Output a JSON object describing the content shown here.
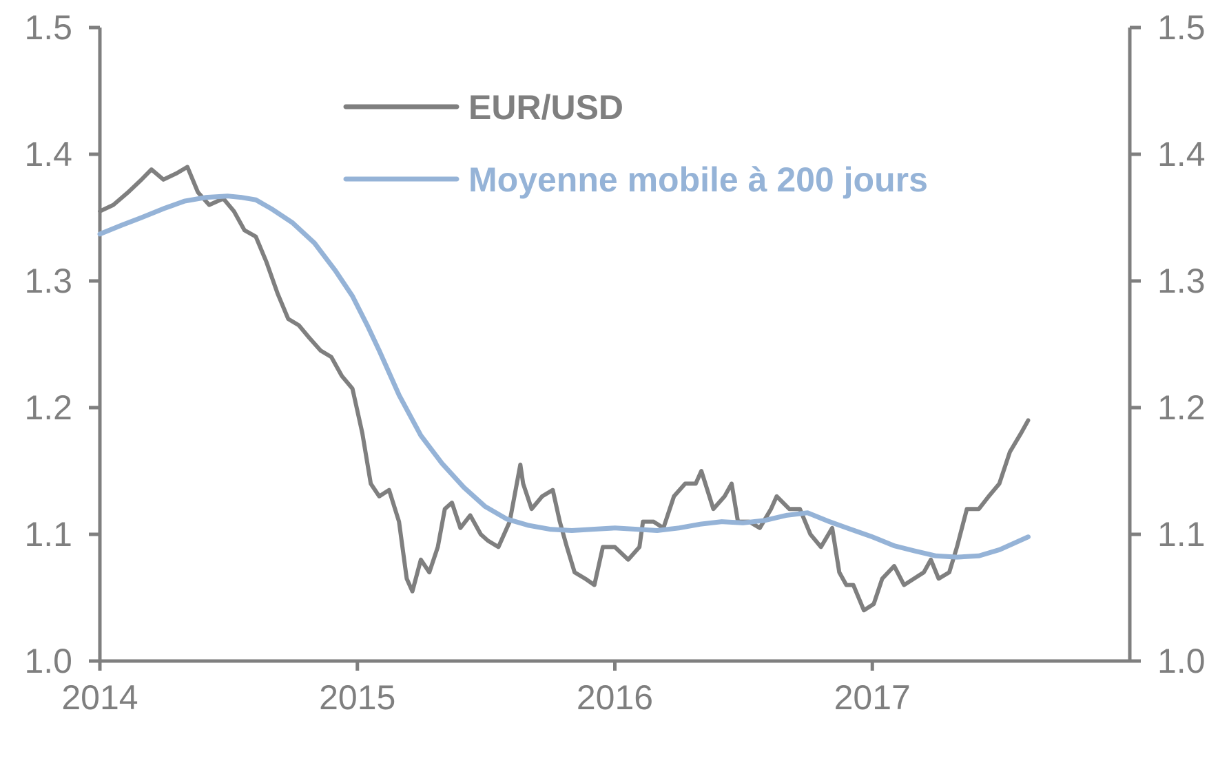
{
  "chart_data": {
    "type": "line",
    "title": "",
    "xlabel": "",
    "ylabel": "",
    "x_ticks": [
      "2014",
      "2015",
      "2016",
      "2017"
    ],
    "xlim": [
      "2014-01-01",
      "2017-12-31"
    ],
    "ylim": [
      1.0,
      1.5
    ],
    "y_ticks": [
      "1.0",
      "1.1",
      "1.2",
      "1.3",
      "1.4",
      "1.5"
    ],
    "secondary_y_ticks": [
      "1.0",
      "1.1",
      "1.2",
      "1.3",
      "1.4",
      "1.5"
    ],
    "grid": false,
    "legend_position": "top-center",
    "series": [
      {
        "name": "EUR/USD",
        "color": "#7f7f7f",
        "x": [
          "2014-01-01",
          "2014-01-20",
          "2014-02-10",
          "2014-03-01",
          "2014-03-15",
          "2014-04-01",
          "2014-04-20",
          "2014-05-05",
          "2014-05-20",
          "2014-06-05",
          "2014-06-25",
          "2014-07-10",
          "2014-07-25",
          "2014-08-10",
          "2014-08-25",
          "2014-09-10",
          "2014-09-25",
          "2014-10-10",
          "2014-10-25",
          "2014-11-10",
          "2014-11-25",
          "2014-12-10",
          "2014-12-25",
          "2015-01-08",
          "2015-01-20",
          "2015-02-01",
          "2015-02-15",
          "2015-03-01",
          "2015-03-12",
          "2015-03-20",
          "2015-04-01",
          "2015-04-13",
          "2015-04-25",
          "2015-05-05",
          "2015-05-15",
          "2015-05-27",
          "2015-06-10",
          "2015-06-25",
          "2015-07-05",
          "2015-07-20",
          "2015-08-05",
          "2015-08-20",
          "2015-08-24",
          "2015-09-05",
          "2015-09-20",
          "2015-10-05",
          "2015-10-15",
          "2015-10-25",
          "2015-11-05",
          "2015-11-20",
          "2015-12-03",
          "2015-12-15",
          "2016-01-01",
          "2016-01-20",
          "2016-02-05",
          "2016-02-10",
          "2016-02-25",
          "2016-03-10",
          "2016-03-25",
          "2016-04-10",
          "2016-04-25",
          "2016-05-03",
          "2016-05-20",
          "2016-06-05",
          "2016-06-15",
          "2016-06-24",
          "2016-07-10",
          "2016-07-25",
          "2016-08-10",
          "2016-08-18",
          "2016-09-05",
          "2016-09-20",
          "2016-10-05",
          "2016-10-20",
          "2016-11-05",
          "2016-11-15",
          "2016-11-25",
          "2016-12-05",
          "2016-12-20",
          "2017-01-03",
          "2017-01-15",
          "2017-02-01",
          "2017-02-15",
          "2017-03-01",
          "2017-03-15",
          "2017-03-25",
          "2017-04-05",
          "2017-04-20",
          "2017-05-01",
          "2017-05-15",
          "2017-06-01",
          "2017-06-15",
          "2017-06-30",
          "2017-07-15",
          "2017-07-31",
          "2017-08-10"
        ],
        "y": [
          1.355,
          1.36,
          1.37,
          1.38,
          1.388,
          1.38,
          1.385,
          1.39,
          1.37,
          1.36,
          1.365,
          1.355,
          1.34,
          1.335,
          1.315,
          1.29,
          1.27,
          1.265,
          1.255,
          1.245,
          1.24,
          1.225,
          1.215,
          1.18,
          1.14,
          1.13,
          1.135,
          1.11,
          1.065,
          1.055,
          1.08,
          1.07,
          1.09,
          1.12,
          1.125,
          1.105,
          1.115,
          1.1,
          1.095,
          1.09,
          1.11,
          1.155,
          1.14,
          1.12,
          1.13,
          1.135,
          1.11,
          1.09,
          1.07,
          1.065,
          1.06,
          1.09,
          1.09,
          1.08,
          1.09,
          1.11,
          1.11,
          1.105,
          1.13,
          1.14,
          1.14,
          1.15,
          1.12,
          1.13,
          1.14,
          1.11,
          1.11,
          1.105,
          1.12,
          1.13,
          1.12,
          1.12,
          1.1,
          1.09,
          1.105,
          1.07,
          1.06,
          1.06,
          1.04,
          1.045,
          1.065,
          1.075,
          1.06,
          1.065,
          1.07,
          1.08,
          1.065,
          1.07,
          1.09,
          1.12,
          1.12,
          1.13,
          1.14,
          1.165,
          1.18,
          1.19
        ]
      },
      {
        "name": "Moyenne mobile à 200 jours",
        "color": "#95b3d7",
        "x": [
          "2014-01-01",
          "2014-02-01",
          "2014-03-01",
          "2014-04-01",
          "2014-05-01",
          "2014-06-01",
          "2014-07-01",
          "2014-07-20",
          "2014-08-10",
          "2014-09-01",
          "2014-10-01",
          "2014-11-01",
          "2014-12-01",
          "2014-12-25",
          "2015-01-15",
          "2015-02-01",
          "2015-03-01",
          "2015-04-01",
          "2015-05-01",
          "2015-06-01",
          "2015-07-01",
          "2015-08-01",
          "2015-09-01",
          "2015-10-01",
          "2015-11-01",
          "2015-12-01",
          "2016-01-01",
          "2016-02-01",
          "2016-03-01",
          "2016-04-01",
          "2016-05-01",
          "2016-06-01",
          "2016-07-01",
          "2016-08-01",
          "2016-09-01",
          "2016-10-01",
          "2016-11-01",
          "2016-12-01",
          "2017-01-01",
          "2017-02-01",
          "2017-03-01",
          "2017-04-01",
          "2017-05-01",
          "2017-06-01",
          "2017-07-01",
          "2017-08-10"
        ],
        "y": [
          1.337,
          1.344,
          1.35,
          1.357,
          1.363,
          1.366,
          1.367,
          1.366,
          1.364,
          1.357,
          1.346,
          1.33,
          1.308,
          1.288,
          1.265,
          1.245,
          1.21,
          1.178,
          1.156,
          1.137,
          1.122,
          1.112,
          1.107,
          1.104,
          1.103,
          1.104,
          1.105,
          1.104,
          1.103,
          1.105,
          1.108,
          1.11,
          1.109,
          1.111,
          1.115,
          1.117,
          1.11,
          1.104,
          1.098,
          1.091,
          1.087,
          1.083,
          1.082,
          1.083,
          1.088,
          1.098
        ]
      }
    ]
  }
}
